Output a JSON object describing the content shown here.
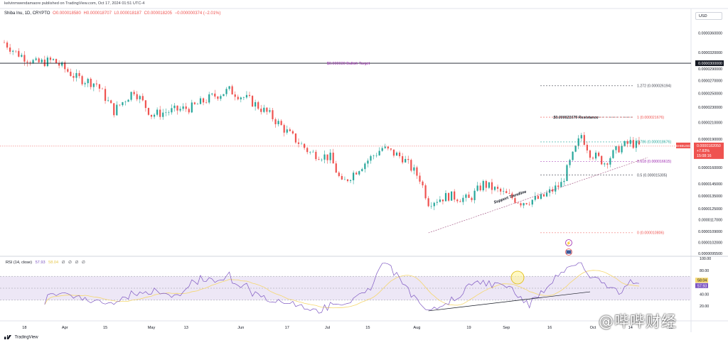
{
  "header": {
    "published_text": "kelvinmwendamaore published on TradingView.com, Oct 17, 2024 01:51 UTC-4",
    "symbol_info": "Shiba Inu, 1D, CRYPTO",
    "ohlc": {
      "open": "O0.000018580",
      "high": "H0.000018707",
      "low": "L0.000018187",
      "close": "C0.000018205",
      "change": "−0.000000374 (−2.01%)"
    },
    "currency": "USD"
  },
  "colors": {
    "up": "#26a69a",
    "down": "#ef5350",
    "purple": "#9c27b0",
    "rsi": "#7e57c2",
    "rsi_ma": "#f5d76e"
  },
  "price_scale": {
    "ticks": [
      "0.0000360000",
      "0.0000320000",
      "0.0000290000",
      "0.0000270000",
      "0.0000250000",
      "0.0000230000",
      "0.0000210000",
      "0.0000190000",
      "0.0000160000",
      "0.0000145000",
      "0.0000135000",
      "0.0000125000",
      "0.0000117000",
      "0.0000109000",
      "0.0000102000",
      "0.0000095500"
    ],
    "target_label": "0.0000300000",
    "symbol_tag": "SHIBUSD",
    "last_price": "0.0000182050",
    "change_tag": "+7.83%",
    "countdown": "15:08:16"
  },
  "annotations": {
    "bullish_target": "$0.000030 Bullish Target",
    "resistance": "$0.000021676 Resistance",
    "support": "Support Trendline",
    "fib": [
      {
        "label": "1.272 (0.000026194)",
        "color": "#434651"
      },
      {
        "label": "1 (0.000021676)",
        "color": "#ef5350"
      },
      {
        "label": "0.786 (0.000018676)",
        "color": "#26a69a"
      },
      {
        "label": "0.618 (0.000016615)",
        "color": "#9c27b0"
      },
      {
        "label": "0.5 (0.000015305)",
        "color": "#434651"
      },
      {
        "label": "0 (0.000010806)",
        "color": "#ef5350"
      }
    ]
  },
  "rsi_panel": {
    "title": "RSI (14, close)",
    "value": "57.93",
    "ma": "58.04",
    "na_1": "∅",
    "na_2": "∅",
    "na_3": "∅",
    "na_4": "∅",
    "ticks": [
      "100.00",
      "80.00",
      "40.00",
      "20.00"
    ],
    "value_tag": "57.93",
    "ma_tag": "58.04"
  },
  "time_axis": [
    "18",
    "Apr",
    "15",
    "May",
    "13",
    "Jun",
    "17",
    "Jul",
    "15",
    "Aug",
    "19",
    "Sep",
    "16",
    "Oct",
    "14",
    "18"
  ],
  "footer": {
    "logo_text": "TradingView"
  },
  "watermark": "@哔哔财经",
  "chart_data": {
    "type": "candlestick",
    "symbol": "SHIBUSD",
    "interval": "1D",
    "x_range": [
      "2024-03-11",
      "2024-10-17"
    ],
    "y_range": [
      9.5e-06,
      4.1e-05
    ],
    "y_scale": "log",
    "key_levels": {
      "bullish_target": 3e-05,
      "resistance": 2.1676e-05,
      "last_price": 1.8205e-05
    },
    "fibonacci": {
      "1.272": 2.6194e-05,
      "1": 2.1676e-05,
      "0.786": 1.8676e-05,
      "0.618": 1.6615e-05,
      "0.5": 1.5305e-05,
      "0": 1.0806e-05
    },
    "close_path": [
      [
        "2024-03-11",
        3.4e-05
      ],
      [
        "2024-03-15",
        3.2e-05
      ],
      [
        "2024-03-22",
        3e-05
      ],
      [
        "2024-03-28",
        3.05e-05
      ],
      [
        "2024-04-05",
        2.75e-05
      ],
      [
        "2024-04-12",
        2.65e-05
      ],
      [
        "2024-04-18",
        2.25e-05
      ],
      [
        "2024-04-25",
        2.55e-05
      ],
      [
        "2024-05-01",
        2.2e-05
      ],
      [
        "2024-05-08",
        2.25e-05
      ],
      [
        "2024-05-15",
        2.3e-05
      ],
      [
        "2024-05-22",
        2.45e-05
      ],
      [
        "2024-05-28",
        2.55e-05
      ],
      [
        "2024-06-04",
        2.4e-05
      ],
      [
        "2024-06-11",
        2.2e-05
      ],
      [
        "2024-06-18",
        1.95e-05
      ],
      [
        "2024-06-25",
        1.75e-05
      ],
      [
        "2024-07-02",
        1.7e-05
      ],
      [
        "2024-07-06",
        1.45e-05
      ],
      [
        "2024-07-12",
        1.6e-05
      ],
      [
        "2024-07-20",
        1.8e-05
      ],
      [
        "2024-07-27",
        1.7e-05
      ],
      [
        "2024-08-02",
        1.5e-05
      ],
      [
        "2024-08-05",
        1.3e-05
      ],
      [
        "2024-08-12",
        1.35e-05
      ],
      [
        "2024-08-19",
        1.32e-05
      ],
      [
        "2024-08-24",
        1.45e-05
      ],
      [
        "2024-08-30",
        1.38e-05
      ],
      [
        "2024-09-06",
        1.3e-05
      ],
      [
        "2024-09-13",
        1.33e-05
      ],
      [
        "2024-09-20",
        1.45e-05
      ],
      [
        "2024-09-27",
        1.95e-05
      ],
      [
        "2024-09-30",
        1.75e-05
      ],
      [
        "2024-10-05",
        1.65e-05
      ],
      [
        "2024-10-10",
        1.8e-05
      ],
      [
        "2024-10-14",
        1.86e-05
      ],
      [
        "2024-10-17",
        1.82e-05
      ]
    ],
    "support_trendline": [
      [
        "2024-08-05",
        1.08e-05
      ],
      [
        "2024-10-20",
        1.7e-05
      ]
    ],
    "rsi": {
      "ylim": [
        0,
        100
      ],
      "last": 57.93,
      "ma_last": 58.04
    }
  }
}
